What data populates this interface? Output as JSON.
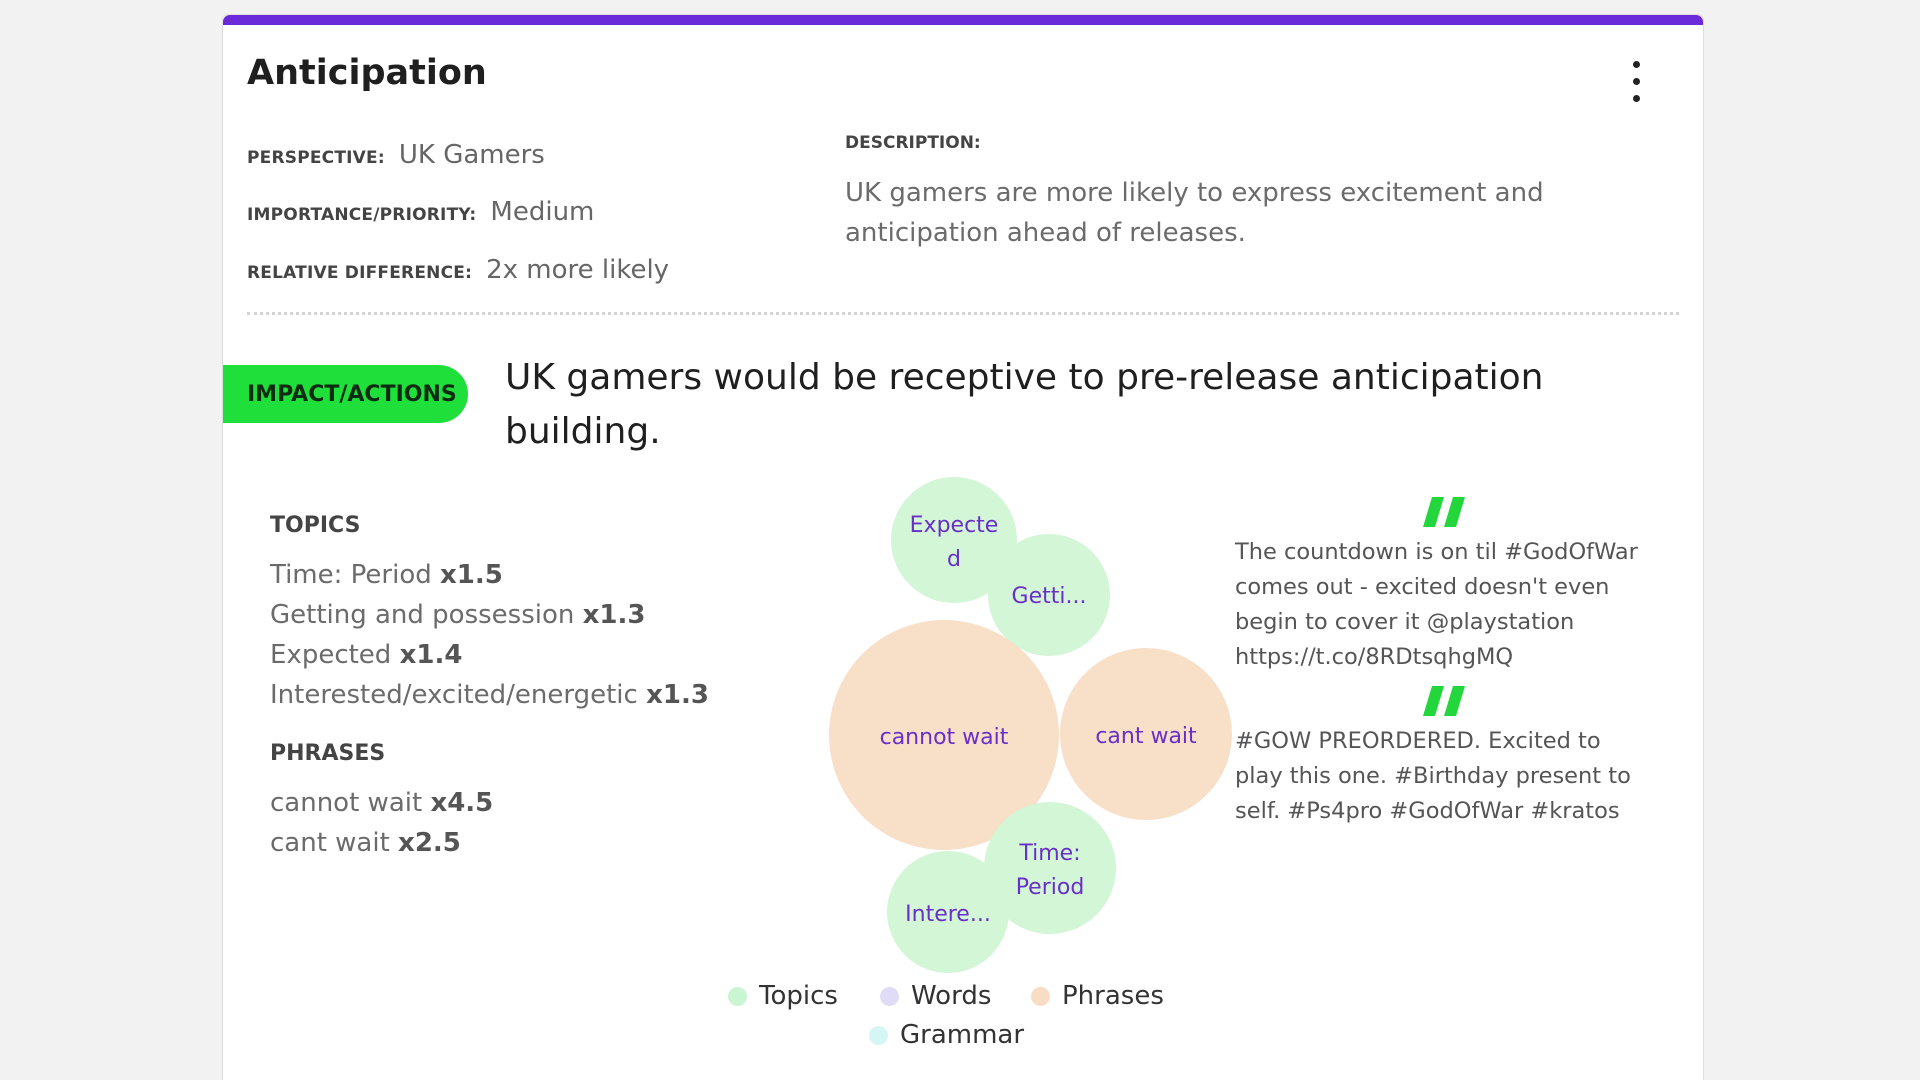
{
  "card": {
    "title": "Anticipation",
    "menu_icon": "more-vertical-icon"
  },
  "meta": {
    "perspective_label": "PERSPECTIVE:",
    "perspective_value": "UK Gamers",
    "importance_label": "IMPORTANCE/PRIORITY:",
    "importance_value": "Medium",
    "relative_label": "RELATIVE DIFFERENCE:",
    "relative_value": "2x more likely"
  },
  "description": {
    "label": "DESCRIPTION:",
    "text": "UK gamers are more likely to express excitement and anticipation ahead of releases."
  },
  "impact": {
    "pill_label": "IMPACT/ACTIONS",
    "text": "UK gamers would be receptive to pre-release anticipation building."
  },
  "topics": {
    "heading": "TOPICS",
    "items": [
      {
        "name": "Time: Period",
        "factor": "x1.5"
      },
      {
        "name": "Getting and possession",
        "factor": "x1.3"
      },
      {
        "name": "Expected",
        "factor": "x1.4"
      },
      {
        "name": "Interested/excited/energetic",
        "factor": "x1.3"
      }
    ]
  },
  "phrases": {
    "heading": "PHRASES",
    "items": [
      {
        "name": "cannot wait",
        "factor": "x4.5"
      },
      {
        "name": "cant wait",
        "factor": "x2.5"
      }
    ]
  },
  "bubbles": [
    {
      "label_lines": [
        "Expecte",
        "d"
      ],
      "kind": "topic"
    },
    {
      "label_lines": [
        "Getti..."
      ],
      "kind": "topic"
    },
    {
      "label_lines": [
        "cannot wait"
      ],
      "kind": "phrase"
    },
    {
      "label_lines": [
        "cant wait"
      ],
      "kind": "phrase"
    },
    {
      "label_lines": [
        "Time:",
        "Period"
      ],
      "kind": "topic"
    },
    {
      "label_lines": [
        "Intere..."
      ],
      "kind": "topic"
    }
  ],
  "quotes": [
    {
      "text": "The countdown is on til #GodOfWar comes out - excited doesn't even begin to cover it @playstation https://t.co/8RDtsqhgMQ"
    },
    {
      "text": "#GOW PREORDERED. Excited to play this one. #Birthday present to self. #Ps4pro #GodOfWar #kratos"
    }
  ],
  "legend": [
    {
      "label": "Topics",
      "color": "#c9f5d0"
    },
    {
      "label": "Words",
      "color": "#e0dcf7"
    },
    {
      "label": "Phrases",
      "color": "#f8dcc4"
    },
    {
      "label": "Grammar",
      "color": "#d4f6f4"
    }
  ],
  "colors": {
    "accent": "#6c2bd9",
    "impact_green": "#1fe03b",
    "topic_fill": "#d2f6d6",
    "phrase_fill": "#f7dfc8",
    "bubble_text": "#6a2fc8",
    "quote_green": "#22d63c"
  }
}
